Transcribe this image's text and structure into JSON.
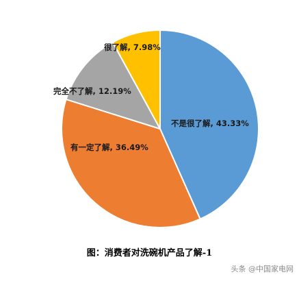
{
  "chart_data": {
    "type": "pie",
    "slices": [
      {
        "label": "不是很了解",
        "value": 43.33,
        "display": "43.33%",
        "color": "#5b9bd5"
      },
      {
        "label": "有一定了解",
        "value": 36.49,
        "display": "36.49%",
        "color": "#ed7d31"
      },
      {
        "label": "完全不了解",
        "value": 12.19,
        "display": "12.19%",
        "color": "#a5a5a5"
      },
      {
        "label": "很了解",
        "value": 7.98,
        "display": "7.98%",
        "color": "#ffc000"
      }
    ],
    "start": "12 o'clock",
    "direction": "clockwise",
    "legend": "none",
    "title": "图：消费者对洗碗机产品了解-1"
  },
  "watermark": "头条 @中国家电网"
}
